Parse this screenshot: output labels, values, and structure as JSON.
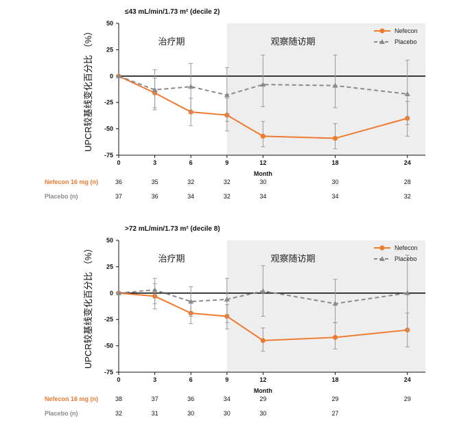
{
  "colors": {
    "nefecon": "#ee7b30",
    "placebo": "#8a8a8a",
    "shade": "#eeeeee",
    "errorbar": "#9a9a9a"
  },
  "charts": [
    {
      "title": "≤43 mL/min/1.73 m² (decile 2)",
      "phase_labels": [
        "治疗期",
        "观察随访期"
      ],
      "n_rows": [
        {
          "label": "Nefecon 16 mg (n)",
          "counts": [
            "36",
            "35",
            "32",
            "32",
            "30",
            "30",
            "28"
          ]
        },
        {
          "label": "Placebo (n)",
          "counts": [
            "37",
            "36",
            "34",
            "32",
            "34",
            "34",
            "32"
          ]
        }
      ]
    },
    {
      "title": ">72 mL/min/1.73 m² (decile 8)",
      "phase_labels": [
        "治疗期",
        "观察随访期"
      ],
      "n_rows": [
        {
          "label": "Nefecon 16 mg (n)",
          "counts": [
            "38",
            "37",
            "36",
            "34",
            "29",
            "29",
            "29"
          ]
        },
        {
          "label": "Placebo (n)",
          "counts": [
            "32",
            "31",
            "30",
            "30",
            "30",
            "27",
            ""
          ]
        }
      ]
    }
  ],
  "chart_data": [
    {
      "type": "line",
      "title": "≤43 mL/min/1.73 m² (decile 2)",
      "xlabel": "Month",
      "ylabel": "UPCR较基线变化百分比 （%）",
      "x": [
        0,
        3,
        6,
        9,
        12,
        18,
        24
      ],
      "x_ticks": [
        "0",
        "3",
        "6",
        "9",
        "12",
        "18",
        "24"
      ],
      "xlim": [
        0,
        25.5
      ],
      "ylim": [
        -75,
        50
      ],
      "y_ticks": [
        "50",
        "25",
        "0",
        "-25",
        "-50",
        "-75"
      ],
      "shaded_from_x": 9,
      "legend_position": "top-right",
      "series": [
        {
          "name": "Nefecon",
          "values": [
            0,
            -16,
            -34,
            -37,
            -57,
            -59,
            -40
          ],
          "error": [
            [
              0,
              0
            ],
            [
              -30,
              -2
            ],
            [
              -47,
              -21
            ],
            [
              -52,
              -21
            ],
            [
              -67,
              -43
            ],
            [
              -69,
              -45
            ],
            [
              -57,
              -24
            ]
          ]
        },
        {
          "name": "Placebo",
          "values": [
            0,
            -13,
            -10,
            -18,
            -8,
            -9,
            -17
          ],
          "error": [
            [
              0,
              0
            ],
            [
              -32,
              6
            ],
            [
              -34,
              12
            ],
            [
              -43,
              8
            ],
            [
              -29,
              20
            ],
            [
              -30,
              20
            ],
            [
              -46,
              15
            ]
          ]
        }
      ]
    },
    {
      "type": "line",
      "title": ">72 mL/min/1.73 m² (decile 8)",
      "xlabel": "Month",
      "ylabel": "UPCR较基线变化百分比 （%）",
      "x": [
        0,
        3,
        6,
        9,
        12,
        18,
        24
      ],
      "x_ticks": [
        "0",
        "3",
        "6",
        "9",
        "12",
        "18",
        "24"
      ],
      "xlim": [
        0,
        25.5
      ],
      "ylim": [
        -75,
        50
      ],
      "y_ticks": [
        "50",
        "25",
        "0",
        "-25",
        "-50",
        "-75"
      ],
      "shaded_from_x": 9,
      "legend_position": "top-right",
      "series": [
        {
          "name": "Nefecon",
          "values": [
            0,
            -3,
            -19,
            -22,
            -45,
            -42,
            -35
          ],
          "error": [
            [
              0,
              0
            ],
            [
              -15,
              9
            ],
            [
              -29,
              -8
            ],
            [
              -34,
              -11
            ],
            [
              -55,
              -33
            ],
            [
              -53,
              -28
            ],
            [
              -51,
              -19
            ]
          ]
        },
        {
          "name": "Placebo",
          "values": [
            0,
            3,
            -8,
            -6,
            2,
            -10,
            0
          ],
          "error": [
            [
              0,
              0
            ],
            [
              -10,
              14
            ],
            [
              -22,
              6
            ],
            [
              -28,
              14
            ],
            [
              -22,
              26
            ],
            [
              -28,
              13
            ],
            [
              -35,
              36
            ]
          ]
        }
      ]
    }
  ]
}
